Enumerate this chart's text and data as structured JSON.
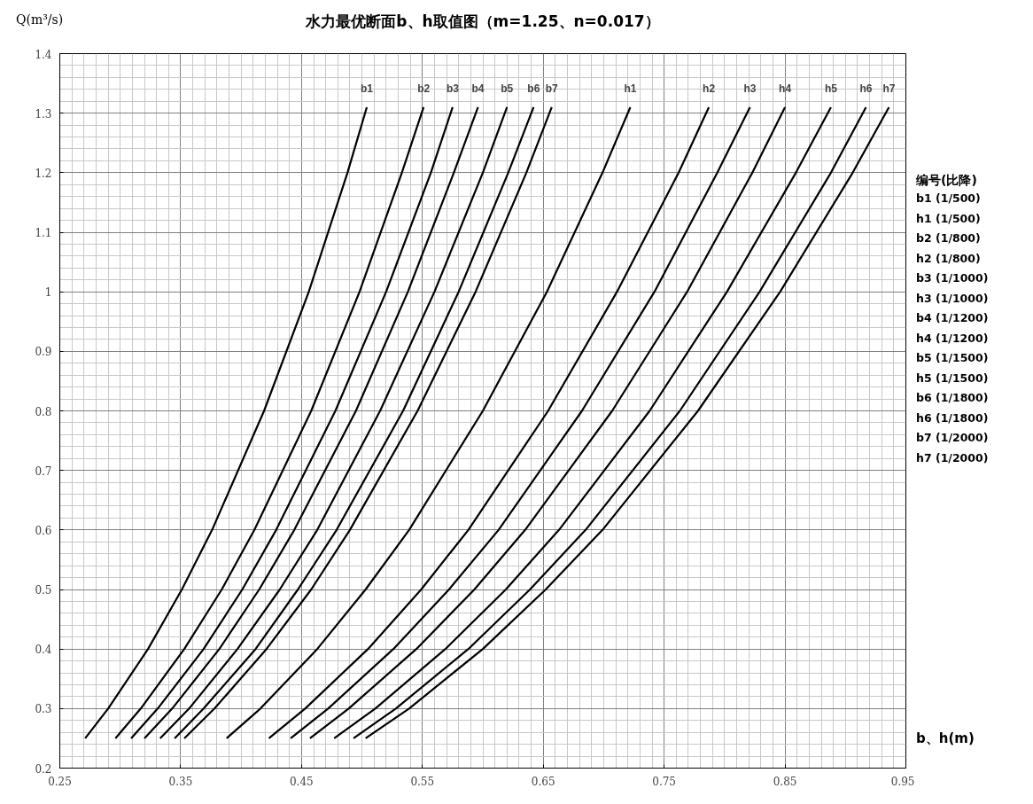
{
  "chart_data": {
    "type": "line",
    "title": "水力最优断面b、h取值图（m=1.25、n=0.017）",
    "xlabel": "b、h(m)",
    "ylabel": "Q(m³/s)",
    "xlim": [
      0.25,
      0.95
    ],
    "xticks": [
      0.25,
      0.35,
      0.45,
      0.55,
      0.65,
      0.75,
      0.85,
      0.95
    ],
    "ylim": [
      0.2,
      1.4
    ],
    "yticks": [
      0.2,
      0.3,
      0.4,
      0.5,
      0.6,
      0.7,
      0.8,
      0.9,
      1,
      1.1,
      1.2,
      1.3,
      1.4
    ],
    "grid": true,
    "marker": "none",
    "line_style": "solid",
    "series": [
      {
        "name": "b1",
        "color": "#000000",
        "x": [
          0.271,
          0.29,
          0.323,
          0.351,
          0.376,
          0.419,
          0.456,
          0.488,
          0.504
        ],
        "values": [
          0.25,
          0.3,
          0.4,
          0.5,
          0.6,
          0.8,
          1.0,
          1.2,
          1.31
        ]
      },
      {
        "name": "b2",
        "color": "#000000",
        "x": [
          0.296,
          0.317,
          0.353,
          0.384,
          0.411,
          0.458,
          0.498,
          0.533,
          0.551
        ],
        "values": [
          0.25,
          0.3,
          0.4,
          0.5,
          0.6,
          0.8,
          1.0,
          1.2,
          1.31
        ]
      },
      {
        "name": "b3",
        "color": "#000000",
        "x": [
          0.309,
          0.331,
          0.369,
          0.401,
          0.429,
          0.478,
          0.52,
          0.557,
          0.575
        ],
        "values": [
          0.25,
          0.3,
          0.4,
          0.5,
          0.6,
          0.8,
          1.0,
          1.2,
          1.31
        ]
      },
      {
        "name": "b4",
        "color": "#000000",
        "x": [
          0.32,
          0.343,
          0.382,
          0.415,
          0.444,
          0.495,
          0.538,
          0.576,
          0.596
        ],
        "values": [
          0.25,
          0.3,
          0.4,
          0.5,
          0.6,
          0.8,
          1.0,
          1.2,
          1.31
        ]
      },
      {
        "name": "b5",
        "color": "#000000",
        "x": [
          0.333,
          0.357,
          0.397,
          0.432,
          0.463,
          0.515,
          0.56,
          0.6,
          0.62
        ],
        "values": [
          0.25,
          0.3,
          0.4,
          0.5,
          0.6,
          0.8,
          1.0,
          1.2,
          1.31
        ]
      },
      {
        "name": "b6",
        "color": "#000000",
        "x": [
          0.345,
          0.369,
          0.412,
          0.447,
          0.479,
          0.534,
          0.58,
          0.621,
          0.642
        ],
        "values": [
          0.25,
          0.3,
          0.4,
          0.5,
          0.6,
          0.8,
          1.0,
          1.2,
          1.31
        ]
      },
      {
        "name": "b7",
        "color": "#000000",
        "x": [
          0.353,
          0.378,
          0.421,
          0.458,
          0.49,
          0.546,
          0.594,
          0.636,
          0.657
        ],
        "values": [
          0.25,
          0.3,
          0.4,
          0.5,
          0.6,
          0.8,
          1.0,
          1.2,
          1.31
        ]
      },
      {
        "name": "h1",
        "color": "#000000",
        "x": [
          0.388,
          0.416,
          0.463,
          0.503,
          0.539,
          0.6,
          0.653,
          0.699,
          0.722
        ],
        "values": [
          0.25,
          0.3,
          0.4,
          0.5,
          0.6,
          0.8,
          1.0,
          1.2,
          1.31
        ]
      },
      {
        "name": "h2",
        "color": "#000000",
        "x": [
          0.423,
          0.453,
          0.505,
          0.549,
          0.588,
          0.654,
          0.711,
          0.762,
          0.787
        ],
        "values": [
          0.25,
          0.3,
          0.4,
          0.5,
          0.6,
          0.8,
          1.0,
          1.2,
          1.31
        ]
      },
      {
        "name": "h3",
        "color": "#000000",
        "x": [
          0.441,
          0.472,
          0.526,
          0.572,
          0.613,
          0.682,
          0.742,
          0.794,
          0.821
        ],
        "values": [
          0.25,
          0.3,
          0.4,
          0.5,
          0.6,
          0.8,
          1.0,
          1.2,
          1.31
        ]
      },
      {
        "name": "h4",
        "color": "#000000",
        "x": [
          0.457,
          0.489,
          0.545,
          0.593,
          0.635,
          0.707,
          0.769,
          0.823,
          0.85
        ],
        "values": [
          0.25,
          0.3,
          0.4,
          0.5,
          0.6,
          0.8,
          1.0,
          1.2,
          1.31
        ]
      },
      {
        "name": "h5",
        "color": "#000000",
        "x": [
          0.477,
          0.511,
          0.569,
          0.619,
          0.663,
          0.738,
          0.802,
          0.859,
          0.888
        ],
        "values": [
          0.25,
          0.3,
          0.4,
          0.5,
          0.6,
          0.8,
          1.0,
          1.2,
          1.31
        ]
      },
      {
        "name": "h6",
        "color": "#000000",
        "x": [
          0.493,
          0.528,
          0.588,
          0.639,
          0.685,
          0.763,
          0.829,
          0.888,
          0.917
        ],
        "values": [
          0.25,
          0.3,
          0.4,
          0.5,
          0.6,
          0.8,
          1.0,
          1.2,
          1.31
        ]
      },
      {
        "name": "h7",
        "color": "#000000",
        "x": [
          0.503,
          0.539,
          0.6,
          0.652,
          0.699,
          0.778,
          0.846,
          0.906,
          0.936
        ],
        "values": [
          0.25,
          0.3,
          0.4,
          0.5,
          0.6,
          0.8,
          1.0,
          1.2,
          1.31
        ]
      }
    ],
    "annotations": [
      "编号(比降)",
      "b1 (1/500)",
      "h1 (1/500)",
      "b2 (1/800)",
      "h2 (1/800)",
      "b3 (1/1000)",
      "h3 (1/1000)",
      "b4 (1/1200)",
      "h4 (1/1200)",
      "b5 (1/1500)",
      "h5 (1/1500)",
      "b6 (1/1800)",
      "h6 (1/1800)",
      "b7 (1/2000)",
      "h7 (1/2000)"
    ]
  }
}
